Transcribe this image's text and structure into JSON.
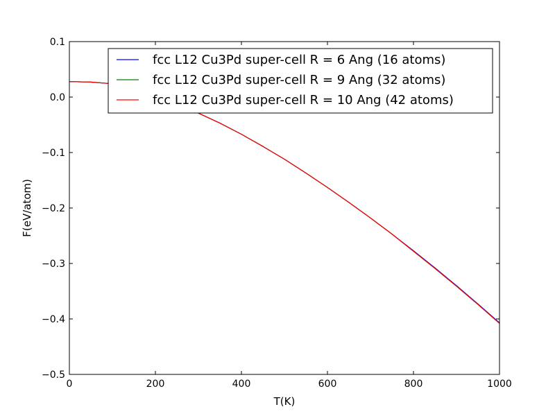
{
  "chart_data": {
    "type": "line",
    "xlabel": "T(K)",
    "ylabel": "F(eV/atom)",
    "xlim": [
      0,
      1000
    ],
    "ylim": [
      -0.5,
      0.1
    ],
    "x_ticks": [
      0,
      200,
      400,
      600,
      800,
      1000
    ],
    "y_ticks": [
      -0.5,
      -0.4,
      -0.3,
      -0.2,
      -0.1,
      0.0,
      0.1
    ],
    "x_tick_labels": [
      "0",
      "200",
      "400",
      "600",
      "800",
      "1000"
    ],
    "y_tick_labels": [
      "−0.5",
      "−0.4",
      "−0.3",
      "−0.2",
      "−0.1",
      "0.0",
      "0.1"
    ],
    "grid": false,
    "legend_position": "top-right",
    "x": [
      0,
      50,
      100,
      150,
      200,
      250,
      300,
      350,
      400,
      450,
      500,
      550,
      600,
      650,
      700,
      750,
      800,
      850,
      900,
      950,
      1000
    ],
    "series": [
      {
        "name": "fcc L12 Cu3Pd super-cell R = 6 Ang (16 atoms)",
        "color": "#0000ff",
        "values": [
          0.028,
          0.027,
          0.024,
          0.012,
          -0.003,
          -0.015,
          -0.029,
          -0.047,
          -0.067,
          -0.089,
          -0.112,
          -0.137,
          -0.163,
          -0.19,
          -0.218,
          -0.247,
          -0.277,
          -0.308,
          -0.34,
          -0.373,
          -0.407
        ]
      },
      {
        "name": "fcc L12 Cu3Pd super-cell R = 9 Ang (32 atoms)",
        "color": "#008000",
        "values": [
          0.028,
          0.027,
          0.024,
          0.012,
          -0.003,
          -0.015,
          -0.029,
          -0.047,
          -0.067,
          -0.089,
          -0.112,
          -0.137,
          -0.163,
          -0.19,
          -0.218,
          -0.247,
          -0.278,
          -0.309,
          -0.341,
          -0.374,
          -0.408
        ]
      },
      {
        "name": "fcc L12 Cu3Pd super-cell R = 10 Ang (42 atoms)",
        "color": "#ff0000",
        "values": [
          0.028,
          0.027,
          0.024,
          0.012,
          -0.003,
          -0.015,
          -0.029,
          -0.047,
          -0.067,
          -0.089,
          -0.112,
          -0.137,
          -0.163,
          -0.19,
          -0.218,
          -0.247,
          -0.278,
          -0.309,
          -0.341,
          -0.374,
          -0.408
        ]
      }
    ]
  }
}
